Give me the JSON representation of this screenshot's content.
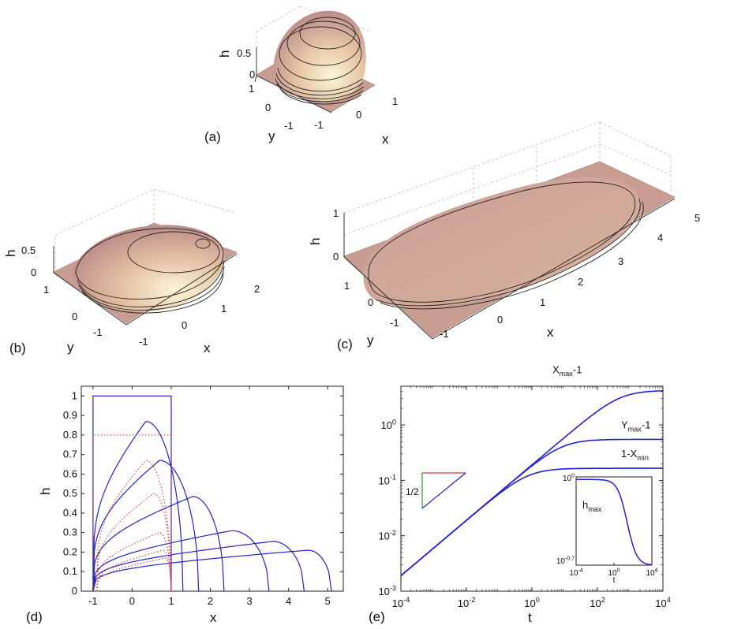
{
  "panel_labels": {
    "a": "(a)",
    "b": "(b)",
    "c": "(c)",
    "d": "(d)",
    "e": "(e)"
  },
  "panel_3d": {
    "a": {
      "xlabel": "x",
      "ylabel": "y",
      "zlabel": "h",
      "x_ticks": [
        "-1",
        "0",
        "1"
      ],
      "y_ticks": [
        "-1",
        "0",
        "1"
      ],
      "z_ticks": [
        "0",
        "0.5"
      ]
    },
    "b": {
      "xlabel": "x",
      "ylabel": "y",
      "zlabel": "h",
      "x_ticks": [
        "-1",
        "0",
        "1",
        "2"
      ],
      "y_ticks": [
        "-1",
        "0",
        "1"
      ],
      "z_ticks": [
        "0",
        "0.5"
      ]
    },
    "c": {
      "xlabel": "x",
      "ylabel": "y",
      "zlabel": "h",
      "x_ticks": [
        "-1",
        "0",
        "1",
        "2",
        "3",
        "4",
        "5"
      ],
      "y_ticks": [
        "-1",
        "0",
        "1"
      ],
      "z_ticks": [
        "0",
        "1"
      ]
    }
  },
  "chart_data": [
    {
      "panel": "d",
      "type": "line",
      "xlabel": "x",
      "ylabel": "h",
      "xlim": [
        -1.3,
        5.4
      ],
      "ylim": [
        0,
        1.05
      ],
      "x_ticks": [
        -1,
        0,
        1,
        2,
        3,
        4,
        5
      ],
      "y_ticks": [
        0,
        0.1,
        0.2,
        0.3,
        0.4,
        0.5,
        0.6,
        0.7,
        0.8,
        0.9,
        1
      ],
      "series": [
        {
          "style": "solid",
          "color": "#2222cc",
          "xl": -1.0,
          "xr": 1.0,
          "hmax": 1.0,
          "xpeak": 0.0,
          "shape": "box"
        },
        {
          "style": "solid",
          "color": "#2222cc",
          "xl": -1.0,
          "xr": 1.3,
          "hmax": 0.87,
          "xpeak": 0.35
        },
        {
          "style": "solid",
          "color": "#2222cc",
          "xl": -1.0,
          "xr": 1.7,
          "hmax": 0.67,
          "xpeak": 0.7
        },
        {
          "style": "solid",
          "color": "#2222cc",
          "xl": -1.0,
          "xr": 2.35,
          "hmax": 0.485,
          "xpeak": 1.55
        },
        {
          "style": "solid",
          "color": "#2222cc",
          "xl": -1.0,
          "xr": 3.5,
          "hmax": 0.31,
          "xpeak": 2.55
        },
        {
          "style": "solid",
          "color": "#2222cc",
          "xl": -1.0,
          "xr": 4.4,
          "hmax": 0.255,
          "xpeak": 3.6
        },
        {
          "style": "solid",
          "color": "#2222cc",
          "xl": -1.0,
          "xr": 5.1,
          "hmax": 0.21,
          "xpeak": 4.5
        },
        {
          "style": "dotted",
          "color": "#dd3333",
          "xl": -1.0,
          "xr": 1.0,
          "hmax": 0.8,
          "xpeak": 0.0,
          "shape": "box"
        },
        {
          "style": "dotted",
          "color": "#dd3333",
          "xl": -0.9,
          "xr": 1.0,
          "hmax": 0.67,
          "xpeak": 0.35
        },
        {
          "style": "dotted",
          "color": "#dd3333",
          "xl": -0.9,
          "xr": 1.0,
          "hmax": 0.5,
          "xpeak": 0.55
        },
        {
          "style": "dotted",
          "color": "#dd3333",
          "xl": -0.9,
          "xr": 1.0,
          "hmax": 0.3,
          "xpeak": 0.7
        },
        {
          "style": "dotted",
          "color": "#dd3333",
          "xl": -0.9,
          "xr": 1.0,
          "hmax": 0.21,
          "xpeak": 0.8
        },
        {
          "style": "dotted",
          "color": "#dd3333",
          "xl": -0.9,
          "xr": 1.0,
          "hmax": 0.17,
          "xpeak": 0.85
        }
      ]
    },
    {
      "panel": "e",
      "type": "line",
      "xlabel": "t",
      "xscale": "log",
      "yscale": "log",
      "xlim": [
        0.0001,
        10000
      ],
      "ylim": [
        0.001,
        5
      ],
      "x_ticks": [
        "10^{-4}",
        "10^{-2}",
        "10^{0}",
        "10^{2}",
        "10^{4}"
      ],
      "y_ticks": [
        "10^{-3}",
        "10^{-2}",
        "10^{-1}",
        "10^{0}"
      ],
      "series": [
        {
          "name": "X_{max}-1",
          "color": "#2222cc",
          "amp": 0.19,
          "sat": 4.2
        },
        {
          "name": "Y_{max}-1",
          "color": "#2222cc",
          "amp": 0.19,
          "sat": 0.55
        },
        {
          "name": "1-X_{min}",
          "color": "#2222cc",
          "amp": 0.19,
          "sat": 0.165
        }
      ],
      "slope_triangle": {
        "label": "1/2"
      },
      "inset": {
        "type": "line",
        "label": "h_{max}",
        "xlabel": "t",
        "xscale": "log",
        "yscale": "log",
        "xlim": [
          0.0001,
          10000
        ],
        "ylim": [
          0.2,
          1.05
        ],
        "x_ticks": [
          "10^{-4}",
          "10^{0}",
          "10^{4}"
        ],
        "y_ticks": [
          "10^{0}",
          "10^{-0.7}"
        ],
        "values": {
          "h_start": 1.0,
          "h_end": 0.2,
          "t_half": 10
        }
      }
    }
  ]
}
